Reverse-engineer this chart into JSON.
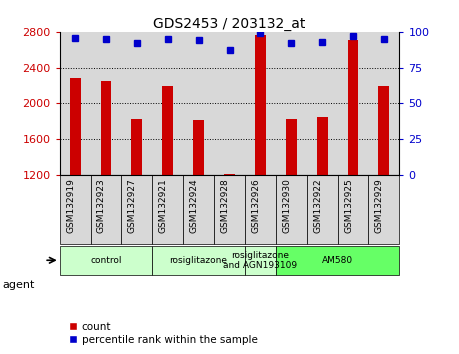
{
  "title": "GDS2453 / 203132_at",
  "samples": [
    "GSM132919",
    "GSM132923",
    "GSM132927",
    "GSM132921",
    "GSM132924",
    "GSM132928",
    "GSM132926",
    "GSM132930",
    "GSM132922",
    "GSM132925",
    "GSM132929"
  ],
  "counts": [
    2280,
    2250,
    1820,
    2190,
    1810,
    1210,
    2760,
    1820,
    1850,
    2710,
    2190
  ],
  "percentiles": [
    96,
    95,
    92,
    95,
    94,
    87,
    99,
    92,
    93,
    97,
    95
  ],
  "bar_color": "#cc0000",
  "dot_color": "#0000cc",
  "ylim_left": [
    1200,
    2800
  ],
  "ylim_right": [
    0,
    100
  ],
  "yticks_left": [
    1200,
    1600,
    2000,
    2400,
    2800
  ],
  "yticks_right": [
    0,
    25,
    50,
    75,
    100
  ],
  "col_bg_color": "#d8d8d8",
  "groups": [
    {
      "label": "control",
      "start": 0,
      "end": 3,
      "color": "#ccffcc"
    },
    {
      "label": "rosiglitazone",
      "start": 3,
      "end": 6,
      "color": "#ccffcc"
    },
    {
      "label": "rosiglitazone\nand AGN193109",
      "start": 6,
      "end": 7,
      "color": "#ccffcc"
    },
    {
      "label": "AM580",
      "start": 7,
      "end": 11,
      "color": "#66ff66"
    }
  ],
  "agent_label": "agent",
  "legend_count_label": "count",
  "legend_percentile_label": "percentile rank within the sample"
}
